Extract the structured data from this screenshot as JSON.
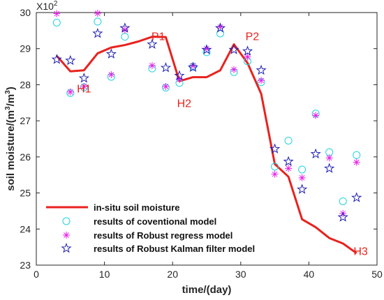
{
  "chart_data": {
    "type": "line",
    "title": "",
    "xlabel": "time/(day)",
    "ylabel": "soil moisture/(m",
    "ylabel_sup": "3",
    "ylabel_mid": "/m",
    "ylabel_sup2": "3",
    "ylabel_end": ")",
    "y_exponent_base": "X10",
    "y_exponent_power": "2",
    "xlim": [
      0,
      50
    ],
    "ylim": [
      23,
      30
    ],
    "xticks": [
      0,
      10,
      20,
      30,
      40,
      50
    ],
    "yticks": [
      23,
      24,
      25,
      26,
      27,
      28,
      29,
      30
    ],
    "grid": false,
    "legend_position": "bottom-left",
    "series": [
      {
        "name": "in-situ soil moisture",
        "style": "line",
        "color": "#e8221e",
        "x": [
          3,
          5,
          7,
          9,
          11,
          13,
          15,
          17,
          19,
          21,
          23,
          25,
          27,
          29,
          31,
          33,
          35,
          37,
          39,
          41,
          43,
          45,
          47
        ],
        "y": [
          28.8,
          28.37,
          28.4,
          28.87,
          29.03,
          29.1,
          29.2,
          29.33,
          29.32,
          28.1,
          28.21,
          28.21,
          28.4,
          29.12,
          28.6,
          27.75,
          25.8,
          25.45,
          24.27,
          24.05,
          23.75,
          23.6,
          23.33
        ]
      },
      {
        "name": "results of coventional model",
        "style": "circle",
        "color": "#1fd3e0",
        "x": [
          3,
          5,
          7,
          9,
          11,
          13,
          17,
          19,
          21,
          23,
          25,
          27,
          29,
          31,
          33,
          35,
          37,
          39,
          41,
          43,
          45,
          47
        ],
        "y": [
          29.72,
          27.77,
          27.93,
          29.75,
          28.22,
          29.33,
          28.45,
          27.92,
          28.05,
          28.5,
          28.9,
          29.42,
          28.35,
          28.65,
          28.07,
          25.73,
          26.45,
          25.65,
          27.2,
          26.13,
          24.77,
          26.05
        ]
      },
      {
        "name": "results of Robust regress model",
        "style": "asterisk",
        "color": "#e822e8",
        "x": [
          3,
          5,
          7,
          9,
          11,
          13,
          17,
          19,
          21,
          23,
          25,
          27,
          29,
          31,
          33,
          35,
          37,
          39,
          41,
          43,
          45,
          47
        ],
        "y": [
          29.97,
          27.8,
          27.95,
          29.98,
          28.28,
          29.52,
          28.53,
          27.95,
          28.15,
          28.53,
          29.0,
          29.6,
          28.42,
          28.77,
          28.12,
          25.52,
          25.68,
          25.42,
          27.15,
          25.97,
          24.43,
          25.85
        ]
      },
      {
        "name": "results of Robust Kalman filter model",
        "style": "star",
        "color": "#1c1cb4",
        "x": [
          3,
          5,
          7,
          9,
          11,
          13,
          17,
          19,
          21,
          23,
          25,
          27,
          29,
          31,
          33,
          35,
          37,
          39,
          41,
          43,
          45,
          47
        ],
        "y": [
          28.7,
          28.67,
          28.18,
          29.42,
          28.85,
          29.57,
          29.12,
          28.47,
          28.25,
          28.48,
          28.97,
          29.57,
          28.97,
          28.93,
          28.4,
          26.22,
          25.87,
          25.1,
          26.08,
          25.68,
          24.33,
          24.87
        ]
      }
    ],
    "annotations": [
      {
        "text": "H1",
        "x": 7,
        "y": 27.9
      },
      {
        "text": "P1",
        "x": 17.9,
        "y": 29.35
      },
      {
        "text": "H2",
        "x": 21.7,
        "y": 27.5
      },
      {
        "text": "P2",
        "x": 31.7,
        "y": 29.35
      },
      {
        "text": "H3",
        "x": 47.6,
        "y": 23.4
      }
    ]
  }
}
